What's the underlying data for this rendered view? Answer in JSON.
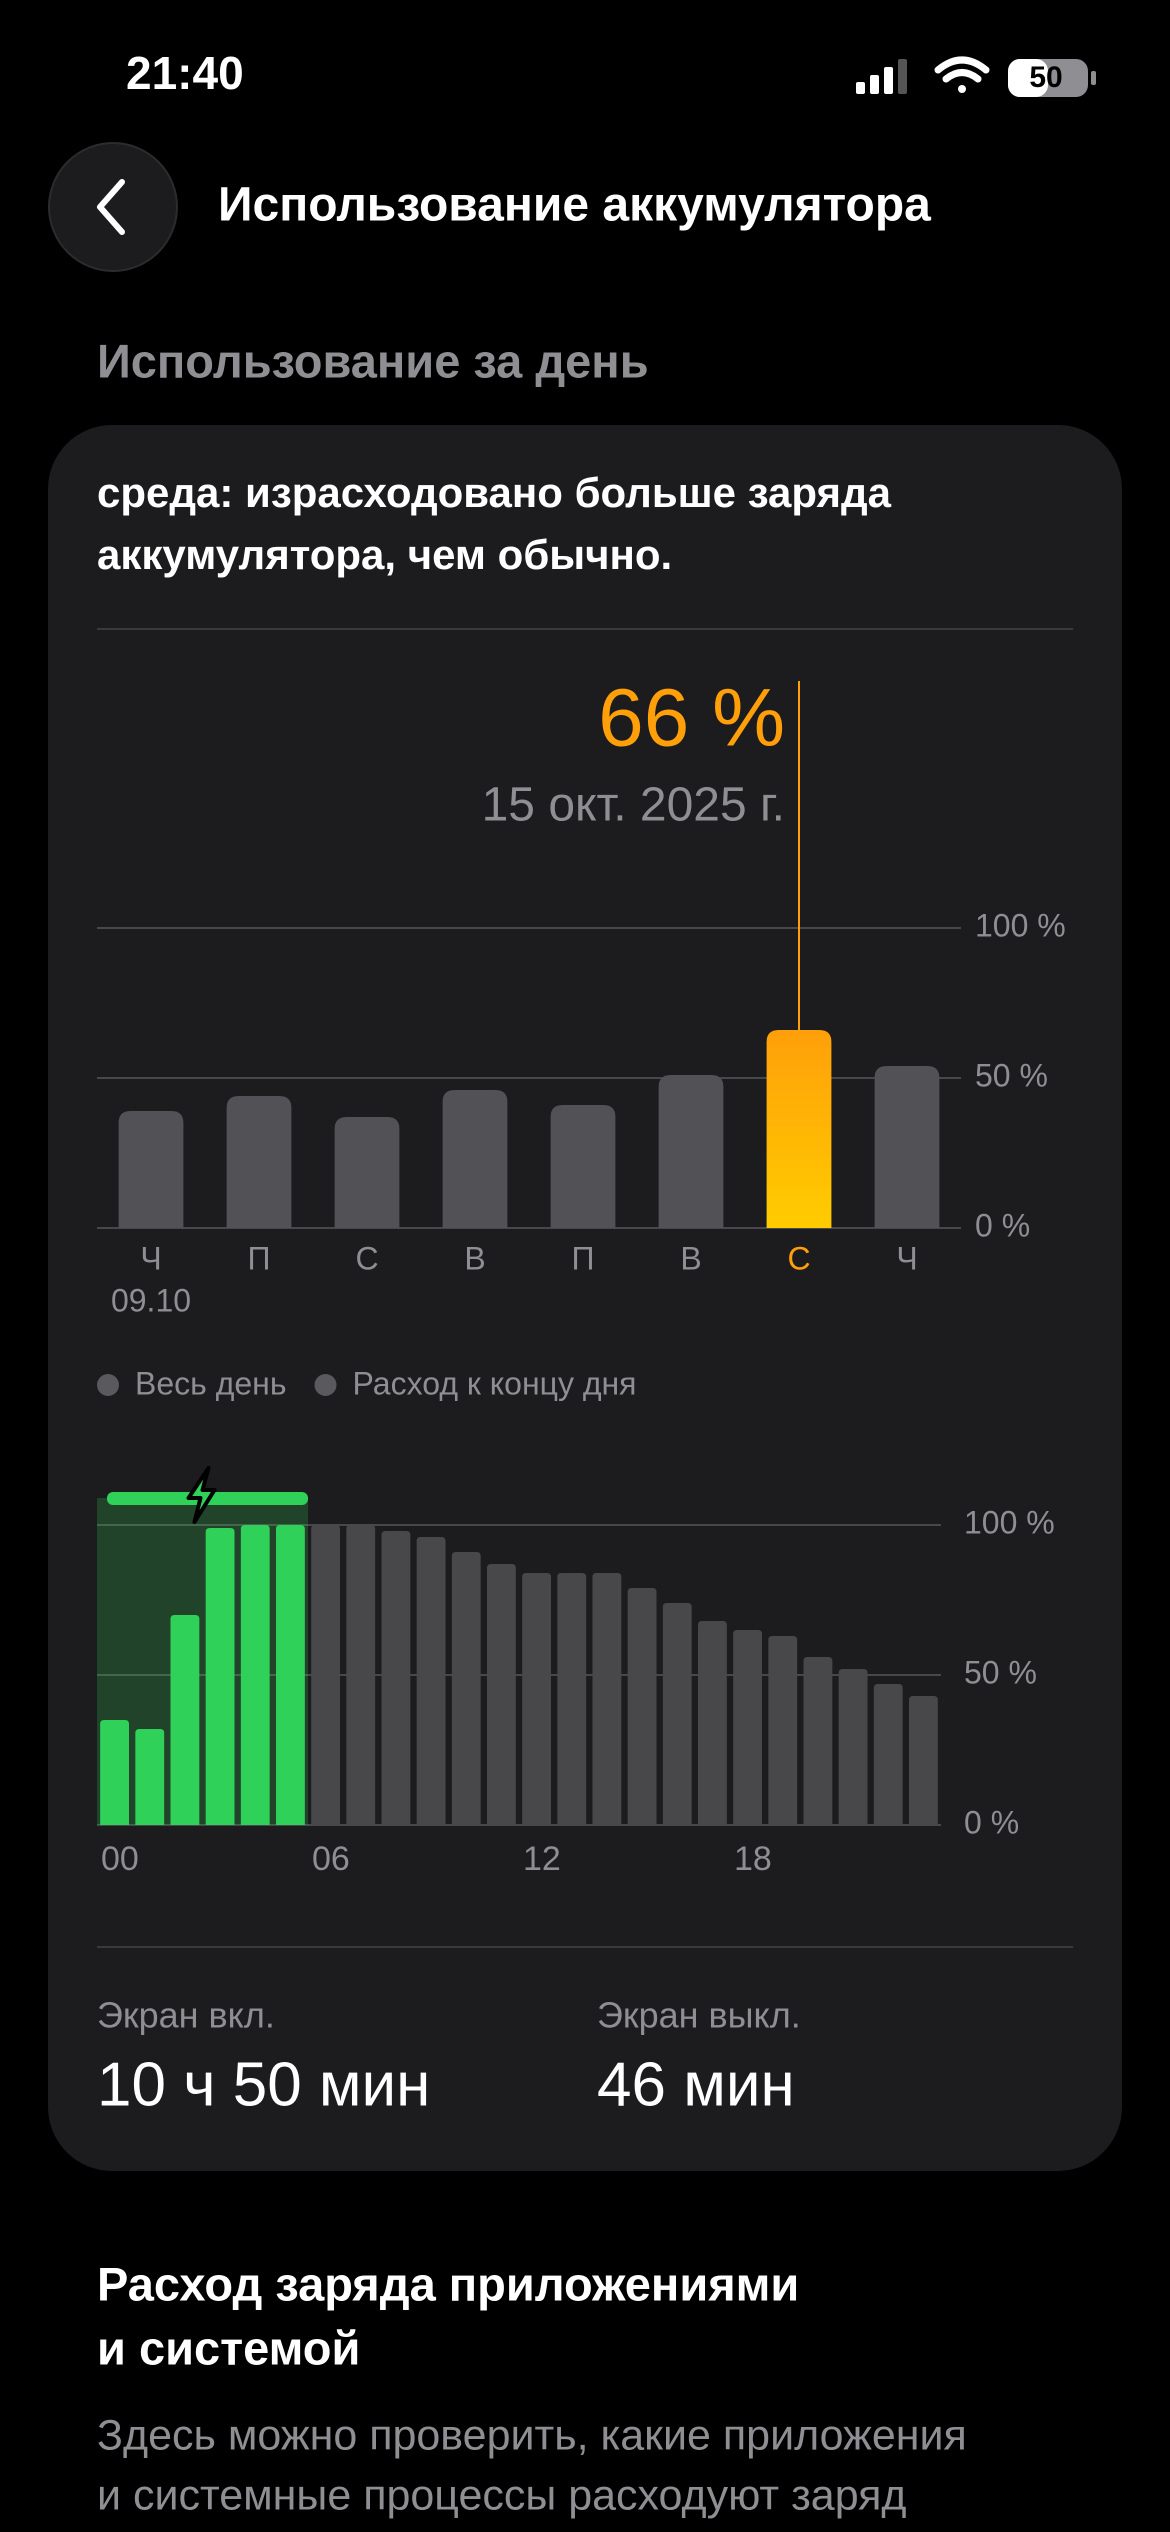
{
  "status_bar": {
    "time": "21:40",
    "battery": "50"
  },
  "header": {
    "title": "Использование аккумулятора"
  },
  "section_title": "Использование за день",
  "card": {
    "note_lines": [
      "среда: израсходовано больше заряда",
      "аккумулятора, чем обычно."
    ],
    "stats": [
      {
        "label": "Экран вкл.",
        "value": "10 ч 50 мин"
      },
      {
        "label": "Экран выкл.",
        "value": "46 мин"
      }
    ]
  },
  "chart_data": [
    {
      "type": "bar",
      "categories": [
        "Ч",
        "П",
        "С",
        "В",
        "П",
        "В",
        "С",
        "Ч"
      ],
      "x_sublabels": [
        "09.10",
        null,
        null,
        null,
        null,
        null,
        null,
        null
      ],
      "values": [
        39,
        44,
        37,
        46,
        41,
        51,
        66,
        54
      ],
      "color": "#525256",
      "highlight_index": 6,
      "highlight_color": "#ff9f0a",
      "highlight_gradient_end": "#ffcc00",
      "highlight_label": "66 %",
      "highlight_date": "15 окт. 2025 г.",
      "ylim": [
        0,
        100
      ],
      "yticks": [
        {
          "value": 0,
          "label": "0 %"
        },
        {
          "value": 50,
          "label": "50 %"
        },
        {
          "value": 100,
          "label": "100 %"
        }
      ],
      "grid": true,
      "legend": [
        {
          "name": "Весь день",
          "color": "#5a5a5e"
        },
        {
          "name": "Расход к концу дня",
          "color": "#5a5a5e"
        }
      ]
    },
    {
      "type": "bar",
      "categories": [
        "00",
        null,
        null,
        null,
        null,
        null,
        "06",
        null,
        null,
        null,
        null,
        null,
        "12",
        null,
        null,
        null,
        null,
        null,
        "18",
        null,
        null,
        null,
        null,
        null
      ],
      "values": [
        35,
        32,
        70,
        99,
        100,
        100,
        100,
        100,
        98,
        96,
        91,
        87,
        84,
        84,
        84,
        79,
        74,
        68,
        65,
        63,
        56,
        52,
        47,
        43
      ],
      "color": "#48484a",
      "charging_color": "#30d158",
      "charging_end": 6,
      "ylim": [
        0,
        100
      ],
      "yticks": [
        {
          "value": 0,
          "label": "0 %"
        },
        {
          "value": 50,
          "label": "50 %"
        },
        {
          "value": 100,
          "label": "100 %"
        }
      ],
      "grid": true
    }
  ],
  "apps_section": {
    "title_lines": [
      "Расход заряда приложениями",
      "и системой"
    ],
    "text_lines": [
      "Здесь можно проверить, какие приложения",
      "и системные процессы расходуют заряд"
    ]
  }
}
